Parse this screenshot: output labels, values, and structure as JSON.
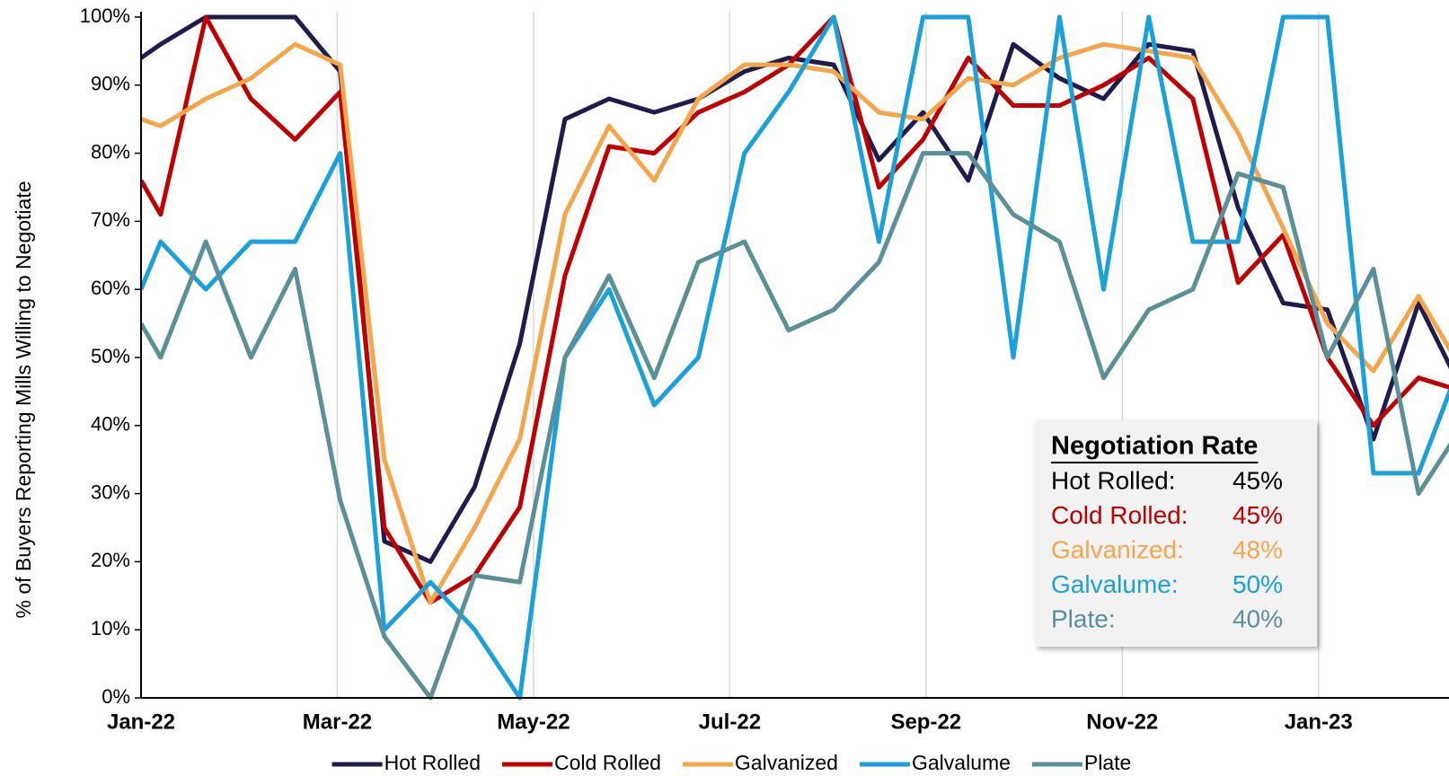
{
  "chart_data": {
    "type": "line",
    "y_label": "% of Buyers Reporting Mills Willing to Negotiate",
    "x": [
      0,
      0.2,
      0.66,
      1.12,
      1.57,
      2.03,
      2.48,
      2.95,
      3.4,
      3.86,
      4.32,
      4.77,
      5.23,
      5.68,
      6.15,
      6.6,
      7.06,
      7.52,
      7.97,
      8.43,
      8.89,
      9.36,
      9.81,
      10.27,
      10.72,
      11.18,
      11.64,
      12.09,
      12.56,
      13.02,
      13.47
    ],
    "xlim": [
      0,
      13.33
    ],
    "xticks": [
      {
        "value": 0,
        "label": "Jan-22"
      },
      {
        "value": 2,
        "label": "Mar-22"
      },
      {
        "value": 4,
        "label": "May-22"
      },
      {
        "value": 6,
        "label": "Jul-22"
      },
      {
        "value": 8,
        "label": "Sep-22"
      },
      {
        "value": 10,
        "label": "Nov-22"
      },
      {
        "value": 12,
        "label": "Jan-23"
      }
    ],
    "ylim": [
      0,
      100
    ],
    "yticks": [
      {
        "value": 0,
        "label": "0%"
      },
      {
        "value": 10,
        "label": "10%"
      },
      {
        "value": 20,
        "label": "20%"
      },
      {
        "value": 30,
        "label": "30%"
      },
      {
        "value": 40,
        "label": "40%"
      },
      {
        "value": 50,
        "label": "50%"
      },
      {
        "value": 60,
        "label": "60%"
      },
      {
        "value": 70,
        "label": "70%"
      },
      {
        "value": 80,
        "label": "80%"
      },
      {
        "value": 90,
        "label": "90%"
      },
      {
        "value": 100,
        "label": "100%"
      }
    ],
    "grid": "x",
    "legend": "bottom",
    "series": [
      {
        "name": "Hot Rolled",
        "color": "#1f1b4d",
        "values": [
          94,
          96,
          100,
          100,
          100,
          92,
          23,
          20,
          31,
          52,
          85,
          88,
          86,
          88,
          92,
          94,
          93,
          79,
          86,
          76,
          96,
          91,
          88,
          96,
          95,
          72,
          58,
          57,
          38,
          58,
          45
        ]
      },
      {
        "name": "Cold Rolled",
        "color": "#c00000",
        "values": [
          76,
          71,
          100,
          88,
          82,
          89,
          25,
          14,
          18,
          28,
          62,
          81,
          80,
          86,
          89,
          93,
          100,
          75,
          82,
          94,
          87,
          87,
          90,
          94,
          88,
          61,
          68,
          50,
          40,
          47,
          45
        ]
      },
      {
        "name": "Galvanized",
        "color": "#f5a54a",
        "values": [
          85,
          84,
          88,
          91,
          96,
          93,
          35,
          14,
          25,
          38,
          71,
          84,
          76,
          88,
          93,
          93,
          92,
          86,
          85,
          91,
          90,
          94,
          96,
          95,
          94,
          83,
          69,
          55,
          48,
          59,
          48
        ]
      },
      {
        "name": "Galvalume",
        "color": "#1ba1d9",
        "values": [
          60,
          67,
          60,
          67,
          67,
          80,
          10,
          17,
          10,
          0,
          50,
          60,
          43,
          50,
          80,
          89,
          100,
          67,
          100,
          100,
          50,
          100,
          60,
          100,
          67,
          67,
          100,
          100,
          33,
          33,
          50
        ]
      },
      {
        "name": "Plate",
        "color": "#5b9098",
        "values": [
          55,
          50,
          67,
          50,
          63,
          29,
          9,
          0,
          18,
          17,
          50,
          62,
          47,
          64,
          67,
          54,
          57,
          64,
          80,
          80,
          71,
          67,
          47,
          57,
          60,
          77,
          75,
          50,
          63,
          30,
          40
        ]
      }
    ],
    "inset": {
      "title": "Negotiation Rate",
      "rows": [
        {
          "label": "Hot Rolled:",
          "value": "45%",
          "color": "#000000"
        },
        {
          "label": "Cold Rolled:",
          "value": "45%",
          "color": "#c00000"
        },
        {
          "label": "Galvanized:",
          "value": "48%",
          "color": "#f5a54a"
        },
        {
          "label": "Galvalume:",
          "value": "50%",
          "color": "#1ba1d9"
        },
        {
          "label": "Plate:",
          "value": "40%",
          "color": "#5b9098"
        }
      ]
    }
  }
}
